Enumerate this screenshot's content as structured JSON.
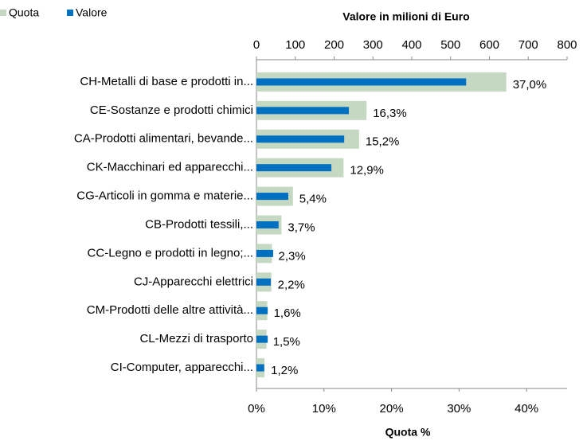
{
  "chart_data": {
    "type": "bar",
    "orientation": "horizontal",
    "categories": [
      "CH-Metalli di base e prodotti in...",
      "CE-Sostanze e prodotti chimici",
      "CA-Prodotti alimentari, bevande...",
      "CK-Macchinari ed apparecchi...",
      "CG-Articoli in gomma e materie...",
      "CB-Prodotti tessili,...",
      "CC-Legno e prodotti in legno;...",
      "CJ-Apparecchi elettrici",
      "CM-Prodotti delle altre attività...",
      "CL-Mezzi di trasporto",
      "CI-Computer, apparecchi..."
    ],
    "series": [
      {
        "name": "Quota",
        "color": "#c5d9c2",
        "axis": "x",
        "values": [
          37.0,
          16.3,
          15.2,
          12.9,
          5.4,
          3.7,
          2.3,
          2.2,
          1.6,
          1.5,
          1.2
        ],
        "value_labels": [
          "37,0%",
          "16,3%",
          "15,2%",
          "12,9%",
          "5,4%",
          "3,7%",
          "2,3%",
          "2,2%",
          "1,6%",
          "1,5%",
          "1,2%"
        ]
      },
      {
        "name": "Valore",
        "color": "#0070c0",
        "axis": "x2",
        "values": [
          540,
          238,
          226,
          193,
          82,
          57,
          43,
          37,
          29,
          29,
          20
        ]
      }
    ],
    "xlabel": "Quota %",
    "x2label": "Valore in milioni di Euro",
    "xlim": [
      0,
      46
    ],
    "xticks": [
      {
        "value": 0,
        "label": "0%"
      },
      {
        "value": 10,
        "label": "10%"
      },
      {
        "value": 20,
        "label": "20%"
      },
      {
        "value": 30,
        "label": "30%"
      },
      {
        "value": 40,
        "label": "40%"
      }
    ],
    "x2lim": [
      0,
      800
    ],
    "x2ticks": [
      0,
      100,
      200,
      300,
      400,
      500,
      600,
      700,
      800
    ],
    "legend": "top-left"
  }
}
